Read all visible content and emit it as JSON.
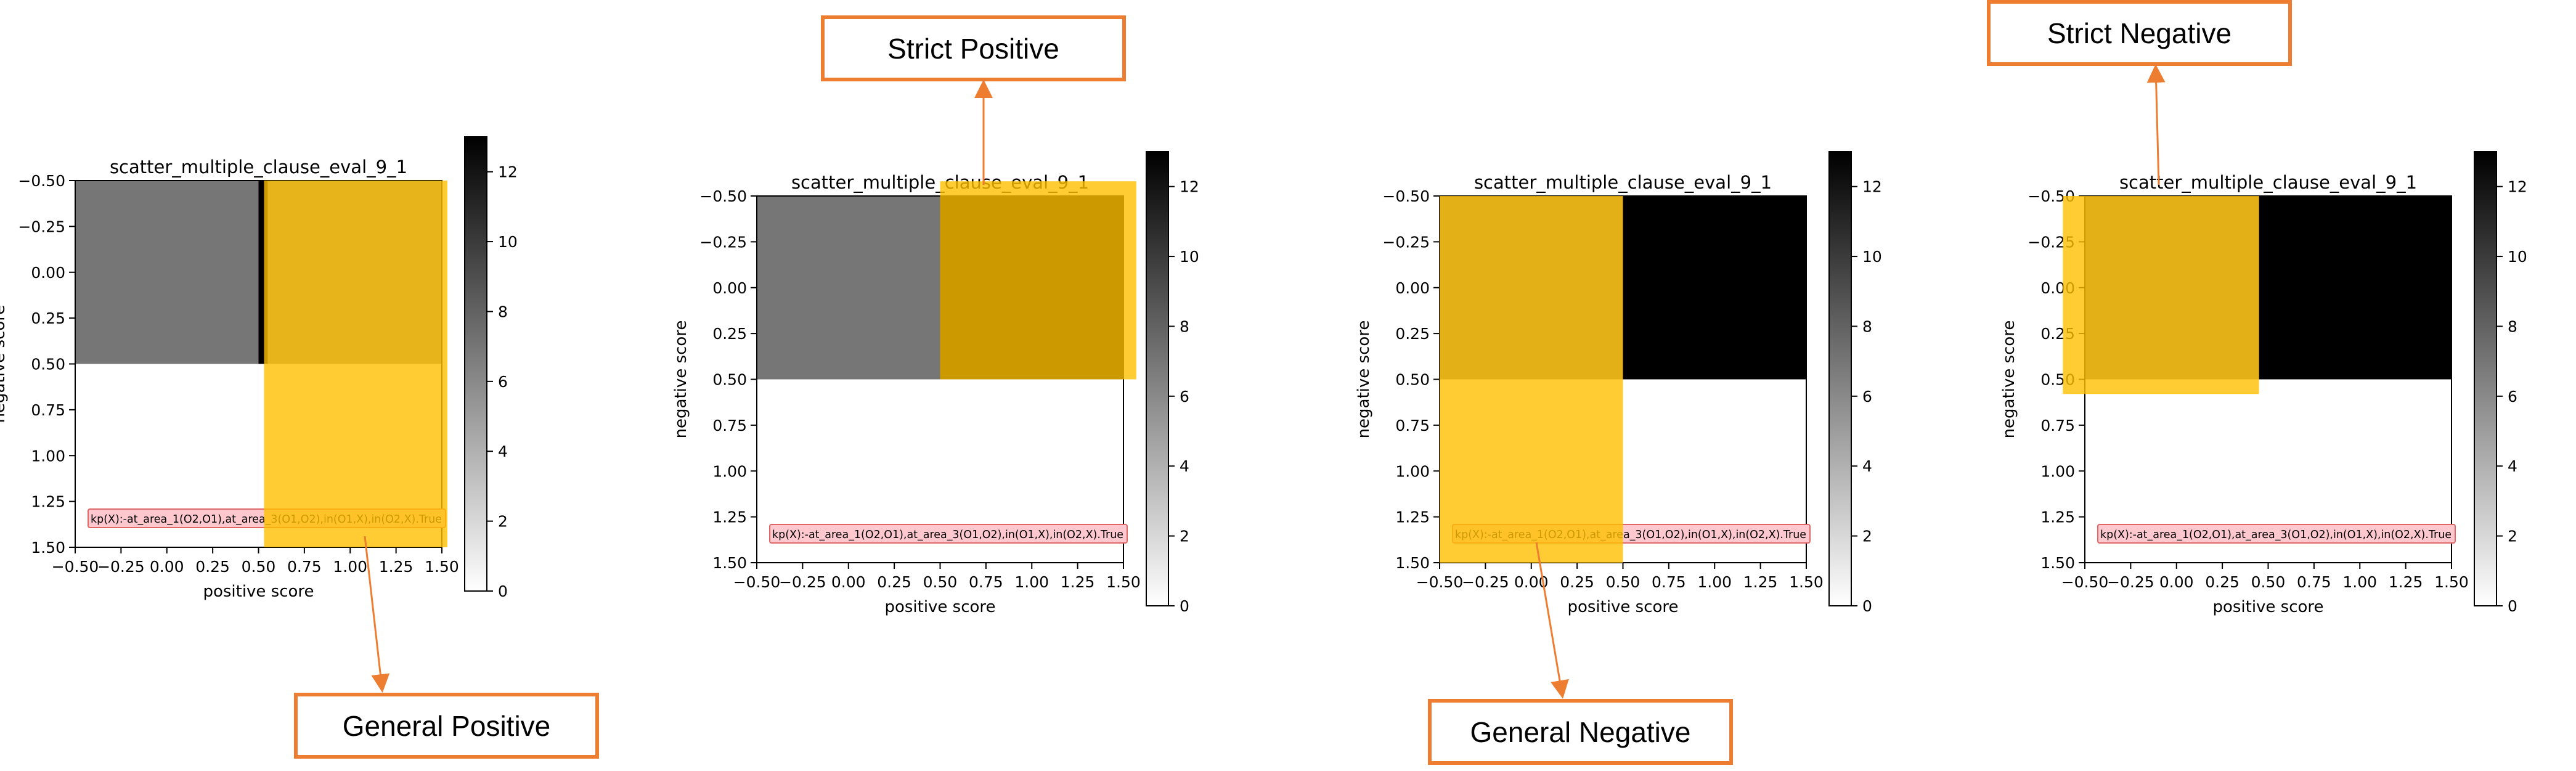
{
  "colors": {
    "highlight": "#FFC000",
    "arrow": "#ED7D31",
    "callout_border": "#ED7D31",
    "label_box_fill": "#FFC7CE",
    "label_box_edge": "#E06666"
  },
  "callouts": {
    "general_positive": "General Positive",
    "strict_positive": "Strict Positive",
    "general_negative": "General Negative",
    "strict_negative": "Strict Negative"
  },
  "chart_data": [
    {
      "type": "heatmap",
      "title": "scatter_multiple_clause_eval_9_1",
      "xlabel": "positive score",
      "ylabel": "negative score",
      "xlim": [
        -0.5,
        1.5
      ],
      "ylim": [
        1.5,
        -0.5
      ],
      "xticks": [
        "−0.50",
        "−0.25",
        "0.00",
        "0.25",
        "0.50",
        "0.75",
        "1.00",
        "1.25",
        "1.50"
      ],
      "yticks": [
        "−0.50",
        "−0.25",
        "0.00",
        "0.25",
        "0.50",
        "0.75",
        "1.00",
        "1.25",
        "1.50"
      ],
      "colorbar": {
        "range": [
          0,
          13
        ],
        "ticks": [
          "0",
          "2",
          "4",
          "6",
          "8",
          "10",
          "12"
        ],
        "colormap": "greys"
      },
      "cells": [
        {
          "x": [
            -0.5,
            0.5
          ],
          "y": [
            -0.5,
            0.5
          ],
          "value": 7
        },
        {
          "x": [
            0.5,
            0.55
          ],
          "y": [
            -0.5,
            0.5
          ],
          "value": 13
        },
        {
          "x": [
            0.55,
            1.5
          ],
          "y": [
            -0.5,
            0.5
          ],
          "value": 6
        },
        {
          "x": [
            -0.5,
            1.5
          ],
          "y": [
            0.5,
            1.5
          ],
          "value": 0
        }
      ],
      "highlight": {
        "x": [
          0.53,
          1.53
        ],
        "y": [
          -0.5,
          1.5
        ]
      },
      "annotation": "kp(X):-at_area_1(O2,O1),at_area_3(O1,O2),in(O1,X),in(O2,X).True",
      "callout": "general_positive"
    },
    {
      "type": "heatmap",
      "title": "scatter_multiple_clause_eval_9_1",
      "xlabel": "positive score",
      "ylabel": "negative score",
      "xlim": [
        -0.5,
        1.5
      ],
      "ylim": [
        1.5,
        -0.5
      ],
      "xticks": [
        "−0.50",
        "−0.25",
        "0.00",
        "0.25",
        "0.50",
        "0.75",
        "1.00",
        "1.25",
        "1.50"
      ],
      "yticks": [
        "−0.50",
        "−0.25",
        "0.00",
        "0.25",
        "0.50",
        "0.75",
        "1.00",
        "1.25",
        "1.50"
      ],
      "colorbar": {
        "range": [
          0,
          13
        ],
        "ticks": [
          "0",
          "2",
          "4",
          "6",
          "8",
          "10",
          "12"
        ],
        "colormap": "greys"
      },
      "cells": [
        {
          "x": [
            -0.5,
            0.5
          ],
          "y": [
            -0.5,
            0.5
          ],
          "value": 7
        },
        {
          "x": [
            0.5,
            1.5
          ],
          "y": [
            -0.5,
            0.5
          ],
          "value": 13
        },
        {
          "x": [
            -0.5,
            1.5
          ],
          "y": [
            0.5,
            1.5
          ],
          "value": 0
        }
      ],
      "highlight": {
        "x": [
          0.5,
          1.57
        ],
        "y": [
          -0.58,
          0.5
        ]
      },
      "annotation": "kp(X):-at_area_1(O2,O1),at_area_3(O1,O2),in(O1,X),in(O2,X).True",
      "callout": "strict_positive"
    },
    {
      "type": "heatmap",
      "title": "scatter_multiple_clause_eval_9_1",
      "xlabel": "positive score",
      "ylabel": "negative score",
      "xlim": [
        -0.5,
        1.5
      ],
      "ylim": [
        1.5,
        -0.5
      ],
      "xticks": [
        "−0.50",
        "−0.25",
        "0.00",
        "0.25",
        "0.50",
        "0.75",
        "1.00",
        "1.25",
        "1.50"
      ],
      "yticks": [
        "−0.50",
        "−0.25",
        "0.00",
        "0.25",
        "0.50",
        "0.75",
        "1.00",
        "1.25",
        "1.50"
      ],
      "colorbar": {
        "range": [
          0,
          13
        ],
        "ticks": [
          "0",
          "2",
          "4",
          "6",
          "8",
          "10",
          "12"
        ],
        "colormap": "greys"
      },
      "cells": [
        {
          "x": [
            -0.5,
            0.5
          ],
          "y": [
            -0.5,
            0.5
          ],
          "value": 7
        },
        {
          "x": [
            0.5,
            1.5
          ],
          "y": [
            -0.5,
            0.5
          ],
          "value": 13
        },
        {
          "x": [
            -0.5,
            1.5
          ],
          "y": [
            0.5,
            1.5
          ],
          "value": 0
        }
      ],
      "highlight": {
        "x": [
          -0.5,
          0.5
        ],
        "y": [
          -0.5,
          1.5
        ]
      },
      "annotation": "kp(X):-at_area_1(O2,O1),at_area_3(O1,O2),in(O1,X),in(O2,X).True",
      "callout": "general_negative"
    },
    {
      "type": "heatmap",
      "title": "scatter_multiple_clause_eval_9_1",
      "xlabel": "positive score",
      "ylabel": "negative score",
      "xlim": [
        -0.5,
        1.5
      ],
      "ylim": [
        1.5,
        -0.5
      ],
      "xticks": [
        "−0.50",
        "−0.25",
        "0.00",
        "0.25",
        "0.50",
        "0.75",
        "1.00",
        "1.25",
        "1.50"
      ],
      "yticks": [
        "−0.50",
        "−0.25",
        "0.00",
        "0.25",
        "0.50",
        "0.75",
        "1.00",
        "1.25",
        "1.50"
      ],
      "colorbar": {
        "range": [
          0,
          13
        ],
        "ticks": [
          "0",
          "2",
          "4",
          "6",
          "8",
          "10",
          "12"
        ],
        "colormap": "greys"
      },
      "cells": [
        {
          "x": [
            -0.5,
            0.45
          ],
          "y": [
            -0.5,
            0.5
          ],
          "value": 7
        },
        {
          "x": [
            0.45,
            1.5
          ],
          "y": [
            -0.5,
            0.5
          ],
          "value": 13
        },
        {
          "x": [
            -0.5,
            1.5
          ],
          "y": [
            0.5,
            1.5
          ],
          "value": 0
        }
      ],
      "highlight": {
        "x": [
          -0.62,
          0.45
        ],
        "y": [
          -0.5,
          0.58
        ]
      },
      "annotation": "kp(X):-at_area_1(O2,O1),at_area_3(O1,O2),in(O1,X),in(O2,X).True",
      "callout": "strict_negative"
    }
  ]
}
